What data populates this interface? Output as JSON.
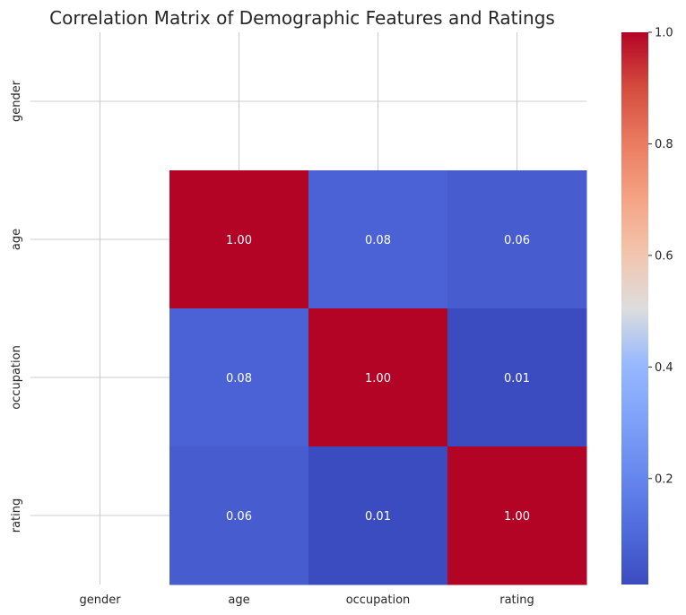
{
  "chart_data": {
    "type": "heatmap",
    "title": "Correlation Matrix of Demographic Features and Ratings",
    "x_categories": [
      "gender",
      "age",
      "occupation",
      "rating"
    ],
    "y_categories": [
      "gender",
      "age",
      "occupation",
      "rating"
    ],
    "values": [
      [
        null,
        null,
        null,
        null
      ],
      [
        null,
        1.0,
        0.08,
        0.06
      ],
      [
        null,
        0.08,
        1.0,
        0.01
      ],
      [
        null,
        0.06,
        0.01,
        1.0
      ]
    ],
    "annotations": [
      [
        "",
        "",
        "",
        ""
      ],
      [
        "",
        "1.00",
        "0.08",
        "0.06"
      ],
      [
        "",
        "0.08",
        "1.00",
        "0.01"
      ],
      [
        "",
        "0.06",
        "0.01",
        "1.00"
      ]
    ],
    "colormap": "coolwarm",
    "colorbar": {
      "range": [
        0.01,
        1.0
      ],
      "ticks": [
        0.2,
        0.4,
        0.6,
        0.8,
        1.0
      ],
      "tick_labels": [
        "0.2",
        "0.4",
        "0.6",
        "0.8",
        "1.0"
      ]
    },
    "grid": true
  }
}
